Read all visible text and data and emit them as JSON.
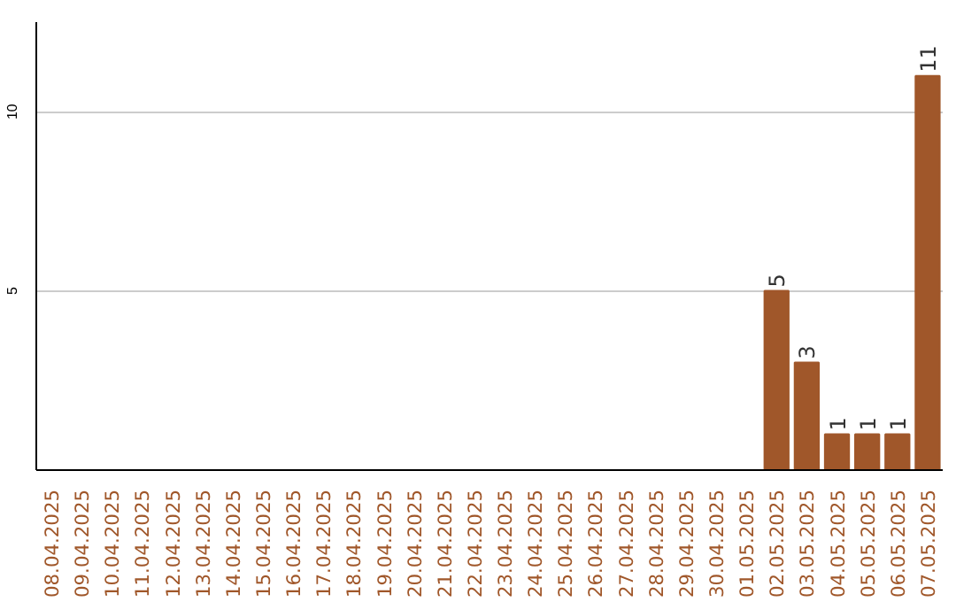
{
  "chart_data": {
    "type": "bar",
    "categories": [
      "08.04.2025",
      "09.04.2025",
      "10.04.2025",
      "11.04.2025",
      "12.04.2025",
      "13.04.2025",
      "14.04.2025",
      "15.04.2025",
      "16.04.2025",
      "17.04.2025",
      "18.04.2025",
      "19.04.2025",
      "20.04.2025",
      "21.04.2025",
      "22.04.2025",
      "23.04.2025",
      "24.04.2025",
      "25.04.2025",
      "26.04.2025",
      "27.04.2025",
      "28.04.2025",
      "29.04.2025",
      "30.04.2025",
      "01.05.2025",
      "02.05.2025",
      "03.05.2025",
      "04.05.2025",
      "05.05.2025",
      "06.05.2025",
      "07.05.2025"
    ],
    "values": [
      0,
      0,
      0,
      0,
      0,
      0,
      0,
      0,
      0,
      0,
      0,
      0,
      0,
      0,
      0,
      0,
      0,
      0,
      0,
      0,
      0,
      0,
      0,
      0,
      5,
      3,
      1,
      1,
      1,
      11
    ],
    "value_labels": [
      null,
      null,
      null,
      null,
      null,
      null,
      null,
      null,
      null,
      null,
      null,
      null,
      null,
      null,
      null,
      null,
      null,
      null,
      null,
      null,
      null,
      null,
      null,
      null,
      "5",
      "3",
      "1",
      "1",
      "1",
      "11"
    ],
    "color": "#a0572a",
    "ylim": [
      0,
      12.5
    ],
    "yticks": [
      5,
      10
    ],
    "grid": "y"
  }
}
